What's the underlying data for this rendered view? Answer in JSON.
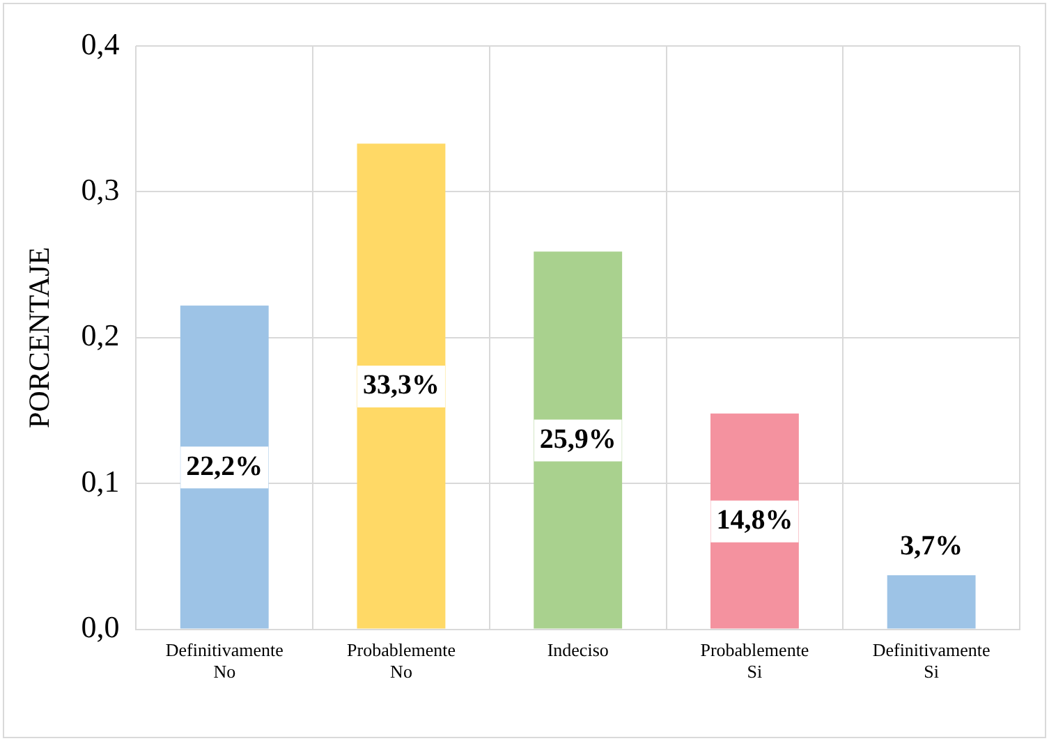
{
  "chart_data": {
    "type": "bar",
    "ylabel": "PORCENTAJE",
    "categories": [
      "Definitivamente No",
      "Probablemente No",
      "Indeciso",
      "Probablemente Si",
      "Definitivamente Si"
    ],
    "values": [
      0.222,
      0.333,
      0.259,
      0.148,
      0.037
    ],
    "colors": [
      "#9dc3e6",
      "#ffd966",
      "#a9d18e",
      "#f4929f",
      "#9dc3e6"
    ],
    "value_labels": [
      "22,2%",
      "33,3%",
      "25,9%",
      "14,8%",
      "3,7%"
    ],
    "ylim": [
      0,
      0.4
    ],
    "yticks": [
      {
        "value": 0,
        "label": "0,0"
      },
      {
        "value": 0.1,
        "label": "0,1"
      },
      {
        "value": 0.2,
        "label": "0,2"
      },
      {
        "value": 0.3,
        "label": "0,3"
      },
      {
        "value": 0.4,
        "label": "0,4"
      }
    ],
    "grid": true,
    "legend": false
  }
}
